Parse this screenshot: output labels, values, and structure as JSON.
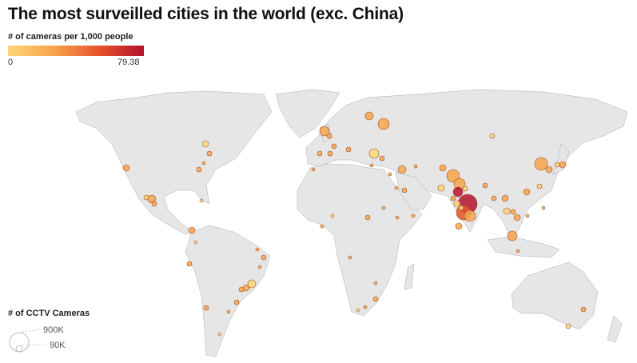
{
  "title": "The most surveilled cities in the world (exc. China)",
  "color_legend": {
    "title": "# of cameras per 1,000 people",
    "min": "0",
    "max": "79.38",
    "colors": [
      "#fdd67a",
      "#f6a54a",
      "#e8532c",
      "#b4122e"
    ]
  },
  "size_legend": {
    "title": "# of CCTV Cameras",
    "large": "900K",
    "small": "90K"
  },
  "map": {
    "land_color": "#e6e6e6",
    "border_color": "#9a9a9a",
    "bubble_stroke": "#a0522d"
  }
}
